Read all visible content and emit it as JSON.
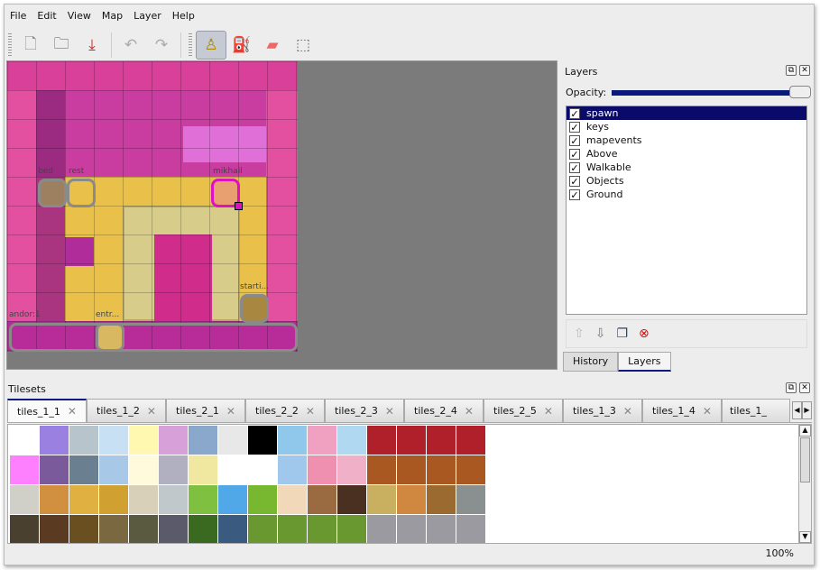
{
  "menu": [
    "File",
    "Edit",
    "View",
    "Map",
    "Layer",
    "Help"
  ],
  "toolbar": [
    {
      "icon": "new-map-icon",
      "glyph": "🗋"
    },
    {
      "icon": "open-icon",
      "glyph": "🗀"
    },
    {
      "icon": "save-icon",
      "glyph": "⤓"
    },
    {
      "icon": "undo-icon",
      "glyph": "↶"
    },
    {
      "icon": "redo-icon",
      "glyph": "↷"
    },
    {
      "icon": "stamp-brush-icon",
      "glyph": "♙",
      "active": true
    },
    {
      "icon": "bucket-fill-icon",
      "glyph": "⛽"
    },
    {
      "icon": "eraser-icon",
      "glyph": "▰"
    },
    {
      "icon": "rectangle-select-icon",
      "glyph": "⬚"
    }
  ],
  "map": {
    "objects": [
      "bed",
      "rest",
      "mikhail",
      "starti...",
      "andor:1",
      "entr..."
    ]
  },
  "layers_panel": {
    "title": "Layers",
    "opacity_label": "Opacity:",
    "opacity": 1.0,
    "layers": [
      {
        "name": "spawn",
        "visible": true,
        "selected": true
      },
      {
        "name": "keys",
        "visible": true
      },
      {
        "name": "mapevents",
        "visible": true
      },
      {
        "name": "Above",
        "visible": true
      },
      {
        "name": "Walkable",
        "visible": true
      },
      {
        "name": "Objects",
        "visible": true
      },
      {
        "name": "Ground",
        "visible": true
      }
    ],
    "tabs": [
      "History",
      "Layers"
    ],
    "active_tab": "Layers"
  },
  "tilesets": {
    "title": "Tilesets",
    "tabs": [
      "tiles_1_1",
      "tiles_1_2",
      "tiles_2_1",
      "tiles_2_2",
      "tiles_2_3",
      "tiles_2_4",
      "tiles_2_5",
      "tiles_1_3",
      "tiles_1_4",
      "tiles_1_"
    ],
    "active_tab": "tiles_1_1"
  },
  "status": {
    "zoom": "100%"
  }
}
